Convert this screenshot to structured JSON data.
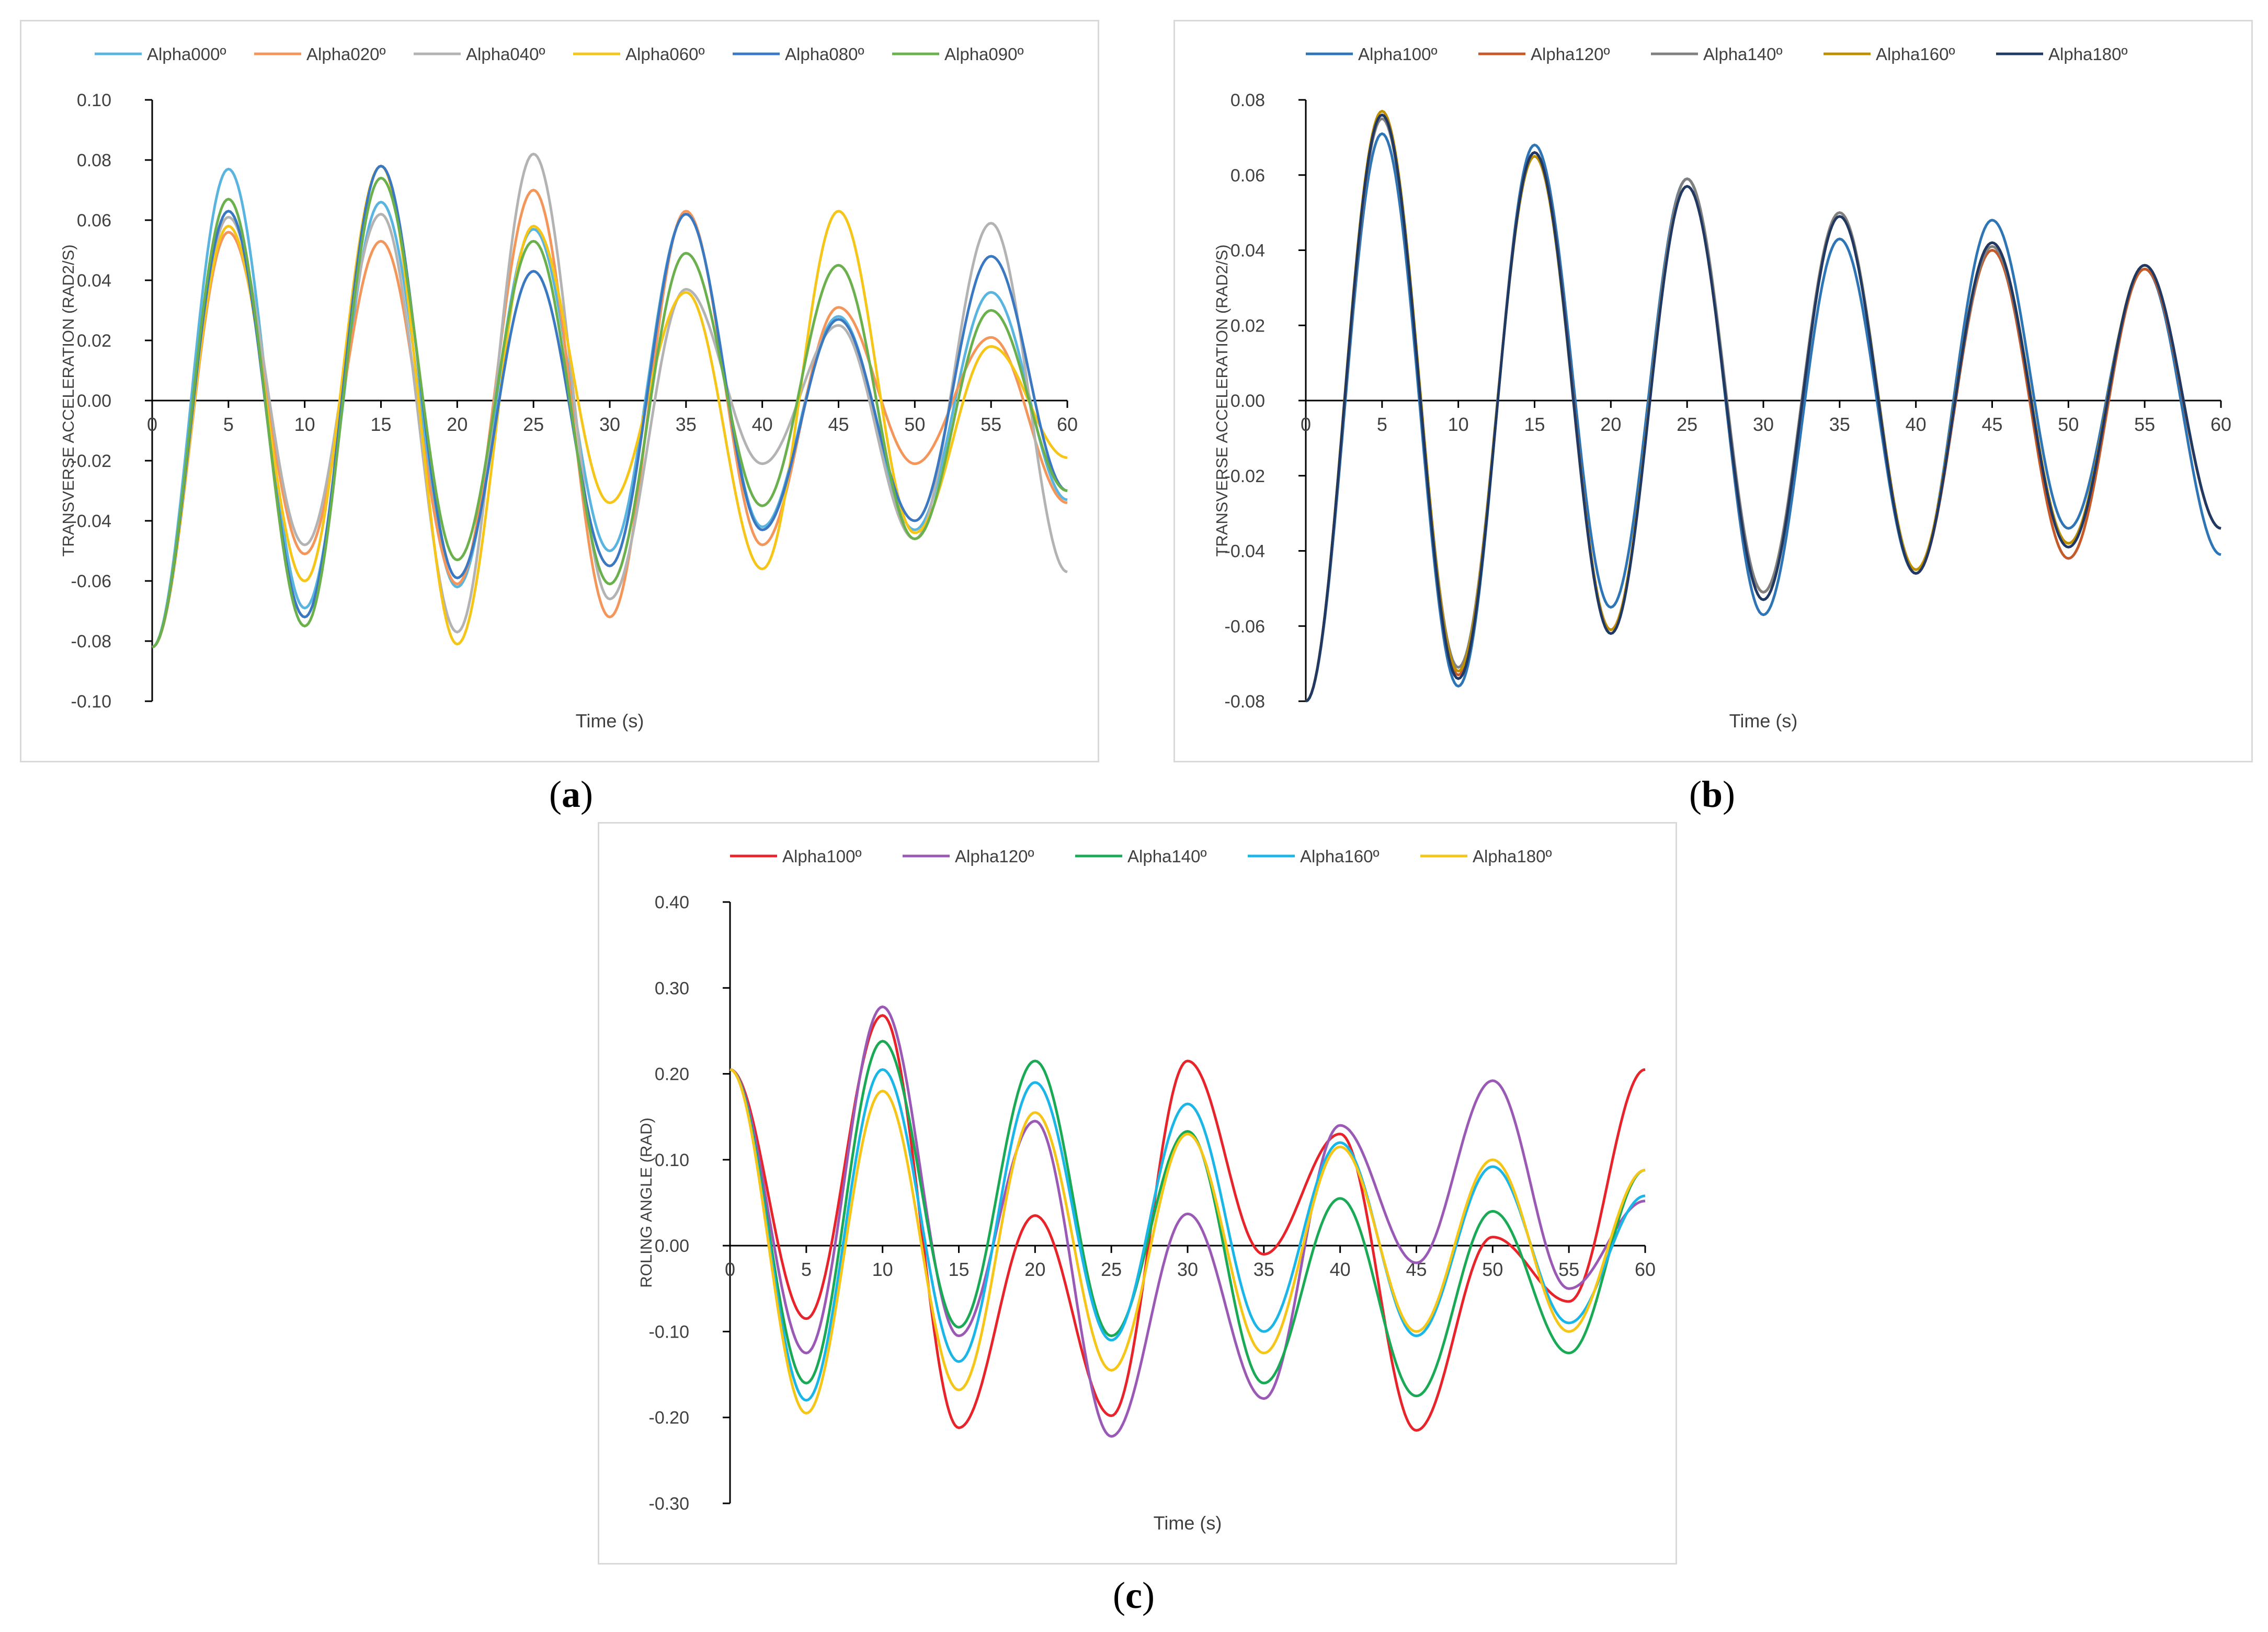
{
  "captions": [
    "a",
    "b",
    "c"
  ],
  "chart_data": [
    {
      "type": "line",
      "panel": "a",
      "xlabel": "Time (s)",
      "ylabel": "TRANSVERSE ACCELERATION (RAD2/S)",
      "xlim": [
        0,
        60
      ],
      "ylim": [
        -0.1,
        0.1
      ],
      "xticks": [
        0,
        5,
        10,
        15,
        20,
        25,
        30,
        35,
        40,
        45,
        50,
        55,
        60
      ],
      "yticks": [
        "0.10",
        "0.08",
        "0.06",
        "0.04",
        "0.02",
        "0.00",
        "-0.02",
        "-0.04",
        "-0.06",
        "-0.08",
        "-0.10"
      ],
      "grid": false,
      "legend_position": "top",
      "x": [
        0,
        5,
        10,
        15,
        20,
        25,
        30,
        35,
        40,
        45,
        50,
        55,
        60
      ],
      "series": [
        {
          "name": "Alpha000º",
          "color": "#5ab4e0",
          "values": [
            -0.082,
            0.077,
            -0.069,
            0.066,
            -0.062,
            0.057,
            -0.05,
            0.062,
            -0.042,
            0.028,
            -0.043,
            0.036,
            -0.033
          ]
        },
        {
          "name": "Alpha020º",
          "color": "#f4955a",
          "values": [
            -0.082,
            0.056,
            -0.051,
            0.053,
            -0.061,
            0.07,
            -0.072,
            0.063,
            -0.048,
            0.031,
            -0.021,
            0.021,
            -0.034
          ]
        },
        {
          "name": "Alpha040º",
          "color": "#b3b3b3",
          "values": [
            -0.082,
            0.061,
            -0.048,
            0.062,
            -0.077,
            0.082,
            -0.066,
            0.037,
            -0.021,
            0.025,
            -0.046,
            0.059,
            -0.057
          ]
        },
        {
          "name": "Alpha060º",
          "color": "#f5c518",
          "values": [
            -0.082,
            0.058,
            -0.06,
            0.078,
            -0.081,
            0.058,
            -0.034,
            0.036,
            -0.056,
            0.063,
            -0.044,
            0.018,
            -0.019
          ]
        },
        {
          "name": "Alpha080º",
          "color": "#3a78c2",
          "values": [
            -0.082,
            0.063,
            -0.072,
            0.078,
            -0.059,
            0.043,
            -0.055,
            0.062,
            -0.043,
            0.027,
            -0.04,
            0.048,
            -0.03
          ]
        },
        {
          "name": "Alpha090º",
          "color": "#6ab04c",
          "values": [
            -0.082,
            0.067,
            -0.075,
            0.074,
            -0.053,
            0.053,
            -0.061,
            0.049,
            -0.035,
            0.045,
            -0.046,
            0.03,
            -0.03
          ]
        }
      ]
    },
    {
      "type": "line",
      "panel": "b",
      "xlabel": "Time (s)",
      "ylabel": "TRANSVERSE ACCELERATION (RAD2/S)",
      "xlim": [
        0,
        60
      ],
      "ylim": [
        -0.08,
        0.08
      ],
      "xticks": [
        0,
        5,
        10,
        15,
        20,
        25,
        30,
        35,
        40,
        45,
        50,
        55,
        60
      ],
      "yticks": [
        "0.08",
        "0.06",
        "0.04",
        "0.02",
        "0.00",
        "-0.02",
        "-0.04",
        "-0.06",
        "-0.08"
      ],
      "grid": false,
      "legend_position": "top",
      "x": [
        0,
        5,
        10,
        15,
        20,
        25,
        30,
        35,
        40,
        45,
        50,
        55,
        60
      ],
      "series": [
        {
          "name": "Alpha100º",
          "color": "#2e75b6",
          "values": [
            -0.08,
            0.071,
            -0.076,
            0.068,
            -0.055,
            0.059,
            -0.057,
            0.043,
            -0.046,
            0.048,
            -0.034,
            0.035,
            -0.041
          ]
        },
        {
          "name": "Alpha120º",
          "color": "#c55a28",
          "values": [
            -0.08,
            0.076,
            -0.073,
            0.066,
            -0.061,
            0.057,
            -0.051,
            0.05,
            -0.046,
            0.04,
            -0.042,
            0.035,
            -0.034
          ]
        },
        {
          "name": "Alpha140º",
          "color": "#808080",
          "values": [
            -0.08,
            0.075,
            -0.071,
            0.065,
            -0.062,
            0.059,
            -0.051,
            0.05,
            -0.045,
            0.041,
            -0.038,
            0.036,
            -0.034
          ]
        },
        {
          "name": "Alpha160º",
          "color": "#bf8f00",
          "values": [
            -0.08,
            0.077,
            -0.072,
            0.065,
            -0.061,
            0.057,
            -0.053,
            0.049,
            -0.045,
            0.042,
            -0.038,
            0.036,
            -0.034
          ]
        },
        {
          "name": "Alpha180º",
          "color": "#1f3864",
          "values": [
            -0.08,
            0.076,
            -0.074,
            0.066,
            -0.062,
            0.057,
            -0.053,
            0.049,
            -0.046,
            0.042,
            -0.039,
            0.036,
            -0.034
          ]
        }
      ]
    },
    {
      "type": "line",
      "panel": "c",
      "xlabel": "Time (s)",
      "ylabel": "ROLING ANGLE (RAD)",
      "xlim": [
        0,
        60
      ],
      "ylim": [
        -0.3,
        0.4
      ],
      "xticks": [
        0,
        5,
        10,
        15,
        20,
        25,
        30,
        35,
        40,
        45,
        50,
        55,
        60
      ],
      "yticks": [
        "0.40",
        "0.30",
        "0.20",
        "0.10",
        "0.00",
        "-0.10",
        "-0.20",
        "-0.30"
      ],
      "grid": false,
      "legend_position": "top",
      "x": [
        0,
        5,
        10,
        15,
        20,
        25,
        30,
        35,
        40,
        45,
        50,
        55,
        60
      ],
      "series": [
        {
          "name": "Alpha100º",
          "color": "#e8232a",
          "values": [
            0.205,
            -0.085,
            0.268,
            -0.212,
            0.035,
            -0.198,
            0.215,
            -0.01,
            0.13,
            -0.215,
            0.01,
            -0.065,
            0.205
          ]
        },
        {
          "name": "Alpha120º",
          "color": "#9b59b6",
          "values": [
            0.205,
            -0.125,
            0.278,
            -0.105,
            0.145,
            -0.222,
            0.037,
            -0.178,
            0.14,
            -0.02,
            0.192,
            -0.05,
            0.052
          ]
        },
        {
          "name": "Alpha140º",
          "color": "#1aaa55",
          "values": [
            0.205,
            -0.16,
            0.238,
            -0.095,
            0.215,
            -0.105,
            0.133,
            -0.16,
            0.055,
            -0.175,
            0.04,
            -0.125,
            0.088
          ]
        },
        {
          "name": "Alpha160º",
          "color": "#1ab6e8",
          "values": [
            0.205,
            -0.18,
            0.205,
            -0.135,
            0.19,
            -0.11,
            0.165,
            -0.1,
            0.12,
            -0.105,
            0.092,
            -0.09,
            0.058
          ]
        },
        {
          "name": "Alpha180º",
          "color": "#f5c518",
          "values": [
            0.205,
            -0.195,
            0.18,
            -0.168,
            0.155,
            -0.145,
            0.13,
            -0.125,
            0.115,
            -0.1,
            0.1,
            -0.1,
            0.088
          ]
        }
      ]
    }
  ]
}
